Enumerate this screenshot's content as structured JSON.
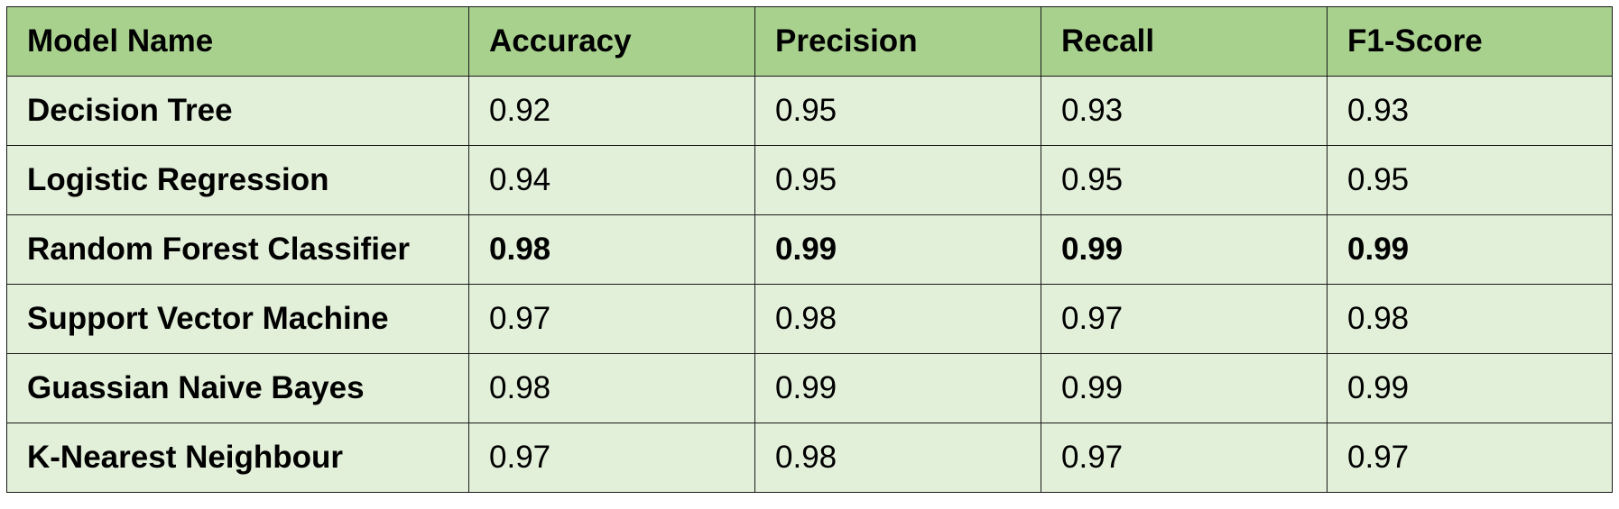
{
  "colors": {
    "header_bg": "#a9d18e",
    "row_bg": "#e2efd9",
    "border": "#1a1a1a"
  },
  "table": {
    "headers": [
      "Model Name",
      "Accuracy",
      "Precision",
      "Recall",
      "F1-Score"
    ],
    "rows": [
      {
        "model": "Decision Tree",
        "accuracy": "0.92",
        "precision": "0.95",
        "recall": "0.93",
        "f1": "0.93",
        "bold": false
      },
      {
        "model": "Logistic Regression",
        "accuracy": "0.94",
        "precision": "0.95",
        "recall": "0.95",
        "f1": "0.95",
        "bold": false
      },
      {
        "model": "Random Forest Classifier",
        "accuracy": "0.98",
        "precision": "0.99",
        "recall": "0.99",
        "f1": "0.99",
        "bold": true
      },
      {
        "model": "Support Vector Machine",
        "accuracy": "0.97",
        "precision": "0.98",
        "recall": "0.97",
        "f1": "0.98",
        "bold": false
      },
      {
        "model": "Guassian Naive Bayes",
        "accuracy": "0.98",
        "precision": "0.99",
        "recall": "0.99",
        "f1": "0.99",
        "bold": false
      },
      {
        "model": "K-Nearest Neighbour",
        "accuracy": "0.97",
        "precision": "0.98",
        "recall": "0.97",
        "f1": "0.97",
        "bold": false
      }
    ]
  }
}
